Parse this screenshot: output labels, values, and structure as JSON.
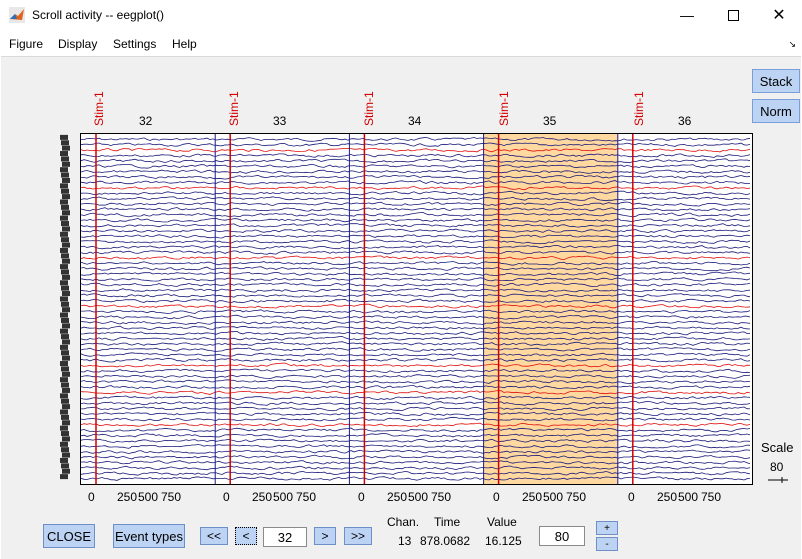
{
  "window": {
    "title": "Scroll activity -- eegplot()"
  },
  "menu": [
    "Figure",
    "Display",
    "Settings",
    "Help"
  ],
  "side_buttons": {
    "stack": "Stack",
    "norm": "Norm"
  },
  "epochs": [
    "32",
    "33",
    "34",
    "35",
    "36"
  ],
  "stim_label": "Stim-1",
  "x_ticks": [
    "0",
    "250",
    "500",
    "750"
  ],
  "controls": {
    "close": "CLOSE",
    "event_types": "Event types",
    "prev_prev": "<<",
    "prev": "<",
    "epoch_value": "32",
    "next": ">",
    "next_next": ">>",
    "scale_value": "80",
    "plus": "+",
    "minus": "-"
  },
  "readout": {
    "chan_label": "Chan.",
    "time_label": "Time",
    "value_label": "Value",
    "chan": "13",
    "time": "878.0682",
    "value": "16.125"
  },
  "scale": {
    "label": "Scale",
    "value": "80"
  },
  "colors": {
    "trace": "#1a1a7a",
    "highlight": "#ffd9a0",
    "stim": "#d40000"
  }
}
